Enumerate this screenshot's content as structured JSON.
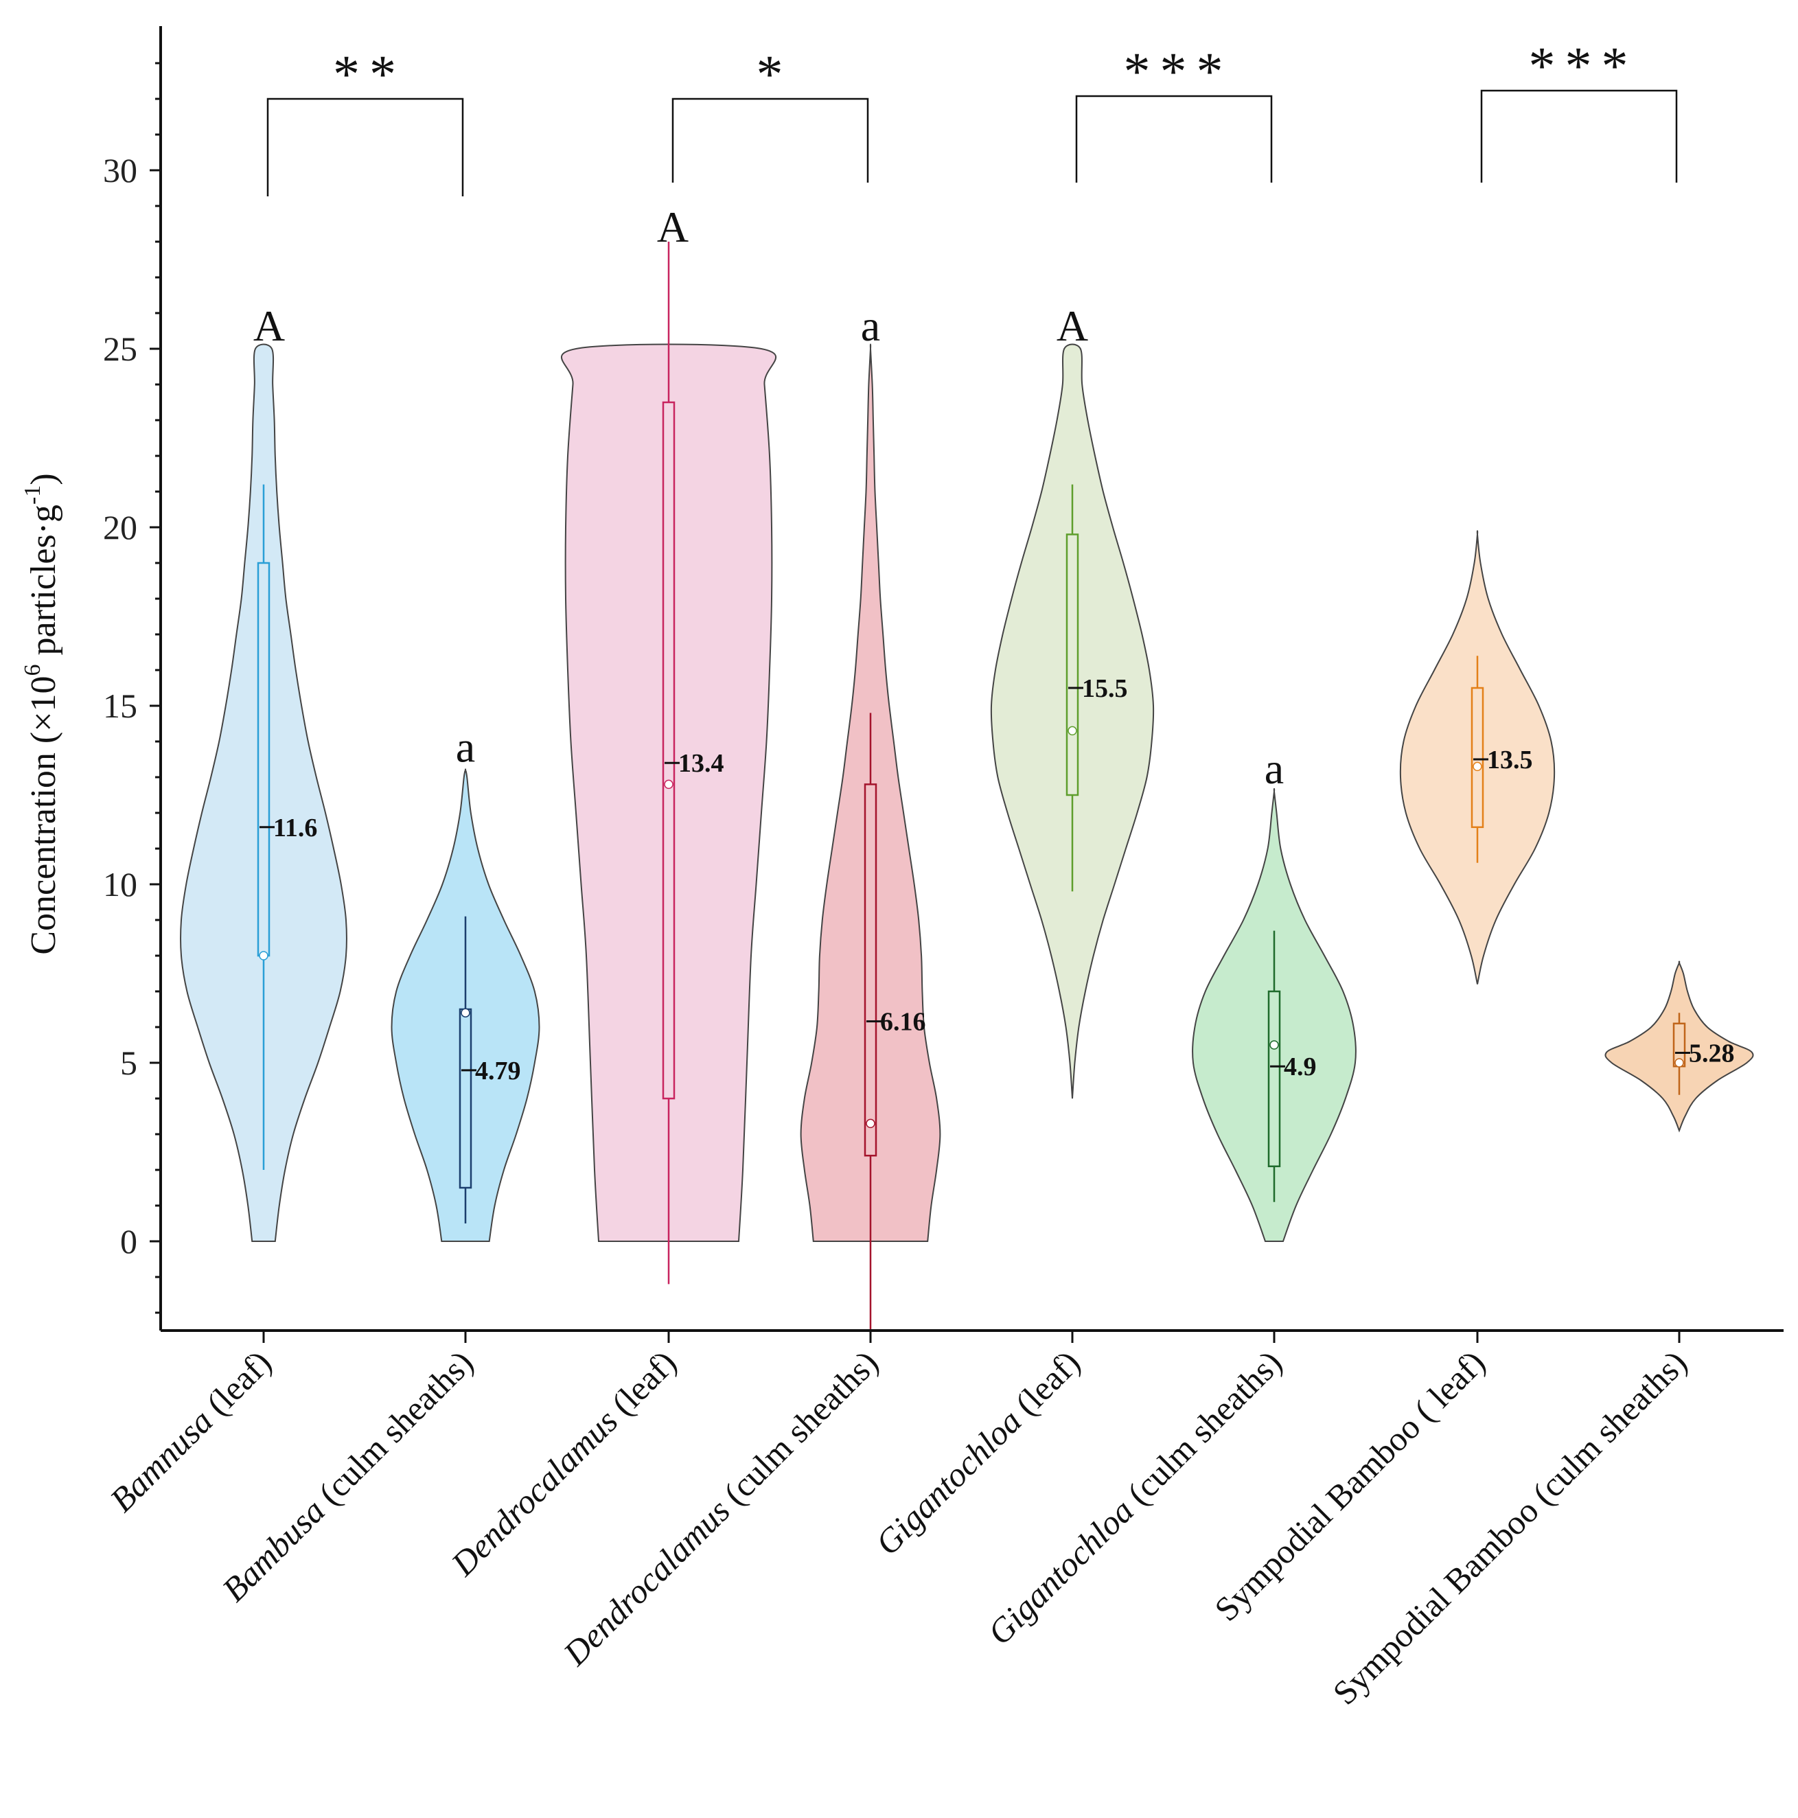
{
  "chart_data": {
    "type": "violin",
    "ylabel_parts": [
      "Concentration (×10",
      "6",
      " particles·g",
      "-1",
      ")"
    ],
    "ylim": [
      -2.5,
      33.5
    ],
    "yticks": [
      0,
      5,
      10,
      15,
      20,
      25,
      30
    ],
    "categories": [
      {
        "italic": "Bamnusa",
        "rest": " (leaf)"
      },
      {
        "italic": "Bambusa",
        "rest": " (culm sheaths)"
      },
      {
        "italic": "Dendrocalamus",
        "rest": " (leaf)"
      },
      {
        "italic": "Dendrocalamus",
        "rest": " (culm sheaths)"
      },
      {
        "italic": "Gigantochloa",
        "rest": " (leaf)"
      },
      {
        "italic": "Gigantochloa",
        "rest": " (culm sheaths)"
      },
      {
        "italic": "",
        "rest": "Sympodial Bamboo ( leaf)"
      },
      {
        "italic": "",
        "rest": "Sympodial Bamboo (culm sheaths)"
      }
    ],
    "series": [
      {
        "fill": "#d3e9f6",
        "line": "#2a9fd6",
        "median": 11.6,
        "median_label": "11.6",
        "q1": 8.0,
        "q3": 19.0,
        "wlo": 2.0,
        "whi": 21.2,
        "mean": 8.0,
        "letter": "A",
        "profile": [
          [
            0,
            0.14
          ],
          [
            1,
            0.19
          ],
          [
            2,
            0.26
          ],
          [
            3,
            0.36
          ],
          [
            4,
            0.5
          ],
          [
            5,
            0.66
          ],
          [
            6,
            0.8
          ],
          [
            7,
            0.93
          ],
          [
            8,
            1.0
          ],
          [
            9,
            1.0
          ],
          [
            10,
            0.94
          ],
          [
            11,
            0.85
          ],
          [
            12,
            0.75
          ],
          [
            13,
            0.64
          ],
          [
            14,
            0.54
          ],
          [
            15,
            0.46
          ],
          [
            16,
            0.39
          ],
          [
            17,
            0.33
          ],
          [
            18,
            0.27
          ],
          [
            19,
            0.23
          ],
          [
            20,
            0.19
          ],
          [
            21,
            0.16
          ],
          [
            22,
            0.14
          ],
          [
            23,
            0.13
          ],
          [
            24,
            0.11
          ],
          [
            25,
            0.1
          ]
        ]
      },
      {
        "fill": "#b9e4f7",
        "line": "#1b3f6e",
        "median": 4.79,
        "median_label": "4.79",
        "q1": 1.5,
        "q3": 6.5,
        "wlo": 0.5,
        "whi": 9.1,
        "mean": 6.4,
        "letter": "a",
        "profile": [
          [
            0,
            0.31
          ],
          [
            1,
            0.38
          ],
          [
            2,
            0.5
          ],
          [
            3,
            0.66
          ],
          [
            4,
            0.8
          ],
          [
            5,
            0.9
          ],
          [
            6,
            0.96
          ],
          [
            7,
            0.9
          ],
          [
            8,
            0.72
          ],
          [
            9,
            0.5
          ],
          [
            10,
            0.3
          ],
          [
            11,
            0.16
          ],
          [
            12,
            0.07
          ],
          [
            13,
            0.02
          ],
          [
            13.2,
            0
          ]
        ]
      },
      {
        "fill": "#f4d4e3",
        "line": "#c8245f",
        "median": 13.4,
        "median_label": "13.4",
        "q1": 4.0,
        "q3": 23.5,
        "wlo": -1.2,
        "whi": 28.0,
        "mean": 12.8,
        "letter": "A",
        "profile": [
          [
            0,
            0.68
          ],
          [
            2,
            0.72
          ],
          [
            5,
            0.76
          ],
          [
            8,
            0.8
          ],
          [
            10,
            0.85
          ],
          [
            12,
            0.9
          ],
          [
            14,
            0.95
          ],
          [
            16,
            0.98
          ],
          [
            18,
            1.0
          ],
          [
            20,
            1.0
          ],
          [
            22,
            0.98
          ],
          [
            24,
            0.93
          ],
          [
            25,
            0.9
          ]
        ]
      },
      {
        "fill": "#f1c1c6",
        "line": "#a4142c",
        "median": 6.16,
        "median_label": "6.16",
        "q1": 2.4,
        "q3": 12.8,
        "wlo": -2.5,
        "whi": 14.8,
        "mean": 3.3,
        "letter": "a",
        "profile": [
          [
            0,
            0.64
          ],
          [
            1,
            0.68
          ],
          [
            2,
            0.74
          ],
          [
            3,
            0.78
          ],
          [
            4,
            0.74
          ],
          [
            5,
            0.66
          ],
          [
            6,
            0.6
          ],
          [
            7,
            0.58
          ],
          [
            8,
            0.57
          ],
          [
            9,
            0.54
          ],
          [
            10,
            0.49
          ],
          [
            11,
            0.43
          ],
          [
            12,
            0.37
          ],
          [
            13,
            0.31
          ],
          [
            14,
            0.26
          ],
          [
            15,
            0.21
          ],
          [
            16,
            0.17
          ],
          [
            17,
            0.14
          ],
          [
            18,
            0.11
          ],
          [
            19,
            0.09
          ],
          [
            20,
            0.07
          ],
          [
            21,
            0.05
          ],
          [
            22,
            0.04
          ],
          [
            23,
            0.03
          ],
          [
            24,
            0.02
          ],
          [
            25,
            0
          ]
        ]
      },
      {
        "fill": "#e3ecd6",
        "line": "#5e9e2c",
        "median": 15.5,
        "median_label": "15.5",
        "q1": 12.5,
        "q3": 19.8,
        "wlo": 9.8,
        "whi": 21.2,
        "mean": 14.3,
        "letter": "A",
        "profile": [
          [
            4,
            0
          ],
          [
            5,
            0.03
          ],
          [
            6,
            0.08
          ],
          [
            7,
            0.16
          ],
          [
            8,
            0.26
          ],
          [
            9,
            0.38
          ],
          [
            10,
            0.52
          ],
          [
            11,
            0.66
          ],
          [
            12,
            0.8
          ],
          [
            13,
            0.92
          ],
          [
            14,
            0.98
          ],
          [
            15,
            1.0
          ],
          [
            16,
            0.95
          ],
          [
            17,
            0.86
          ],
          [
            18,
            0.75
          ],
          [
            19,
            0.63
          ],
          [
            20,
            0.5
          ],
          [
            21,
            0.38
          ],
          [
            22,
            0.28
          ],
          [
            23,
            0.19
          ],
          [
            24,
            0.12
          ],
          [
            25,
            0.1
          ]
        ]
      },
      {
        "fill": "#c6ebcd",
        "line": "#1f6b2c",
        "median": 4.9,
        "median_label": "4.9",
        "q1": 2.1,
        "q3": 7.0,
        "wlo": 1.1,
        "whi": 8.7,
        "mean": 5.5,
        "letter": "a",
        "profile": [
          [
            0,
            0.11
          ],
          [
            1,
            0.27
          ],
          [
            2,
            0.48
          ],
          [
            3,
            0.7
          ],
          [
            4,
            0.88
          ],
          [
            5,
            1.0
          ],
          [
            6,
            0.98
          ],
          [
            7,
            0.85
          ],
          [
            8,
            0.62
          ],
          [
            9,
            0.38
          ],
          [
            10,
            0.2
          ],
          [
            11,
            0.08
          ],
          [
            12,
            0.03
          ],
          [
            12.6,
            0
          ]
        ]
      },
      {
        "fill": "#fae0c8",
        "line": "#e38019",
        "median": 13.5,
        "median_label": "13.5",
        "q1": 11.6,
        "q3": 15.5,
        "wlo": 10.6,
        "whi": 16.4,
        "mean": 13.3,
        "letter": "",
        "profile": [
          [
            7.2,
            0
          ],
          [
            8,
            0.08
          ],
          [
            9,
            0.24
          ],
          [
            10,
            0.48
          ],
          [
            11,
            0.75
          ],
          [
            12,
            0.93
          ],
          [
            13,
            1.0
          ],
          [
            14,
            0.96
          ],
          [
            15,
            0.8
          ],
          [
            16,
            0.56
          ],
          [
            17,
            0.32
          ],
          [
            18,
            0.14
          ],
          [
            19,
            0.04
          ],
          [
            19.8,
            0
          ]
        ]
      },
      {
        "fill": "#f7d4b4",
        "line": "#c0651a",
        "median": 5.28,
        "median_label": "5.28",
        "q1": 4.9,
        "q3": 6.1,
        "wlo": 4.1,
        "whi": 6.4,
        "mean": 5.0,
        "letter": "",
        "profile": [
          [
            3.1,
            0
          ],
          [
            3.5,
            0.07
          ],
          [
            4,
            0.2
          ],
          [
            4.5,
            0.46
          ],
          [
            5,
            0.82
          ],
          [
            5.3,
            0.88
          ],
          [
            5.6,
            0.6
          ],
          [
            6,
            0.34
          ],
          [
            6.5,
            0.18
          ],
          [
            7,
            0.1
          ],
          [
            7.5,
            0.05
          ],
          [
            7.8,
            0
          ]
        ]
      }
    ],
    "brackets": [
      {
        "left": 0,
        "right": 1,
        "stars": "**"
      },
      {
        "left": 2,
        "right": 3,
        "stars": "*"
      },
      {
        "left": 4,
        "right": 5,
        "stars": "***"
      },
      {
        "left": 6,
        "right": 7,
        "stars": "***"
      }
    ]
  }
}
